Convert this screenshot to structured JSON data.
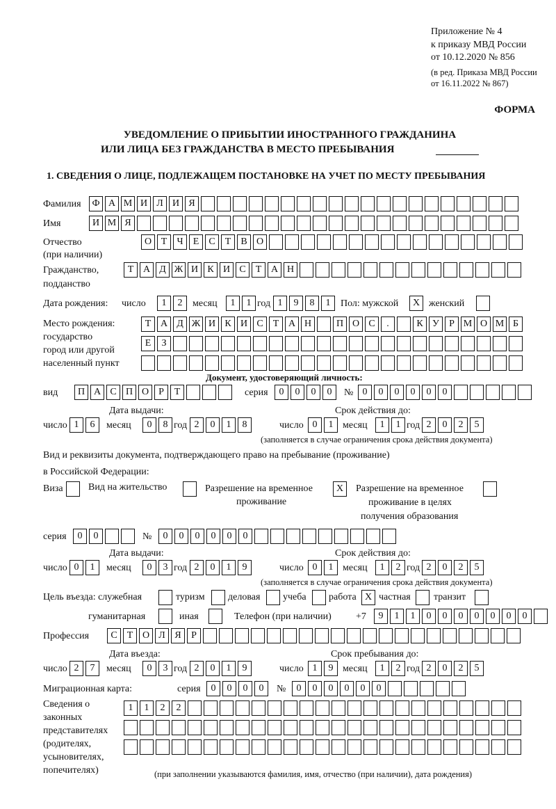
{
  "header": {
    "appendix": [
      "Приложение № 4",
      "к приказу МВД России",
      "от 10.12.2020 № 856"
    ],
    "amendment": [
      "(в ред. Приказа МВД России",
      "от 16.11.2022 № 867)"
    ],
    "form_label": "ФОРМА",
    "title_line1": "УВЕДОМЛЕНИЕ О ПРИБЫТИИ ИНОСТРАННОГО ГРАЖДАНИНА",
    "title_line2": "ИЛИ ЛИЦА БЕЗ ГРАЖДАНСТВА В МЕСТО ПРЕБЫВАНИЯ",
    "section1": "1. СВЕДЕНИЯ О ЛИЦЕ, ПОДЛЕЖАЩЕМ ПОСТАНОВКЕ НА УЧЕТ ПО МЕСТУ ПРЕБЫВАНИЯ"
  },
  "labels": {
    "surname": "Фамилия",
    "name": "Имя",
    "patronymic": "Отчество",
    "patronymic_note": "(при наличии)",
    "citizenship": "Гражданство,",
    "citizenship2": "подданство",
    "birth_date": "Дата рождения:",
    "day": "число",
    "month": "месяц",
    "year": "год",
    "sex": "Пол: мужской",
    "female": "женский",
    "birth_place": [
      "Место рождения:",
      "государство",
      "город или другой",
      "населенный пункт"
    ],
    "id_doc": "Документ, удостоверяющий личность:",
    "kind": "вид",
    "series": "серия",
    "number": "№",
    "issue_date": "Дата выдачи:",
    "valid_until": "Срок действия до:",
    "validity_note": "(заполняется в случае ограничения срока действия документа)",
    "stay_doc1": "Вид и реквизиты документа, подтверждающего право на пребывание (проживание)",
    "stay_doc2": "в Российской Федерации:",
    "visa": "Виза",
    "residence": "Вид на жительство",
    "temp_res": [
      "Разрешение на временное",
      "проживание"
    ],
    "temp_res_edu": [
      "Разрешение на временное",
      "проживание в целях",
      "получения образования"
    ],
    "purpose": "Цель въезда: служебная",
    "tourism": "туризм",
    "business": "деловая",
    "study": "учеба",
    "work": "работа",
    "private": "частная",
    "transit": "транзит",
    "humanitarian": "гуманитарная",
    "other": "иная",
    "phone": "Телефон (при наличии)",
    "phone_prefix": "+7",
    "profession": "Профессия",
    "entry_date": "Дата въезда:",
    "stay_until": "Срок пребывания до:",
    "migration_card": "Миграционная карта:",
    "representatives": [
      "Сведения о",
      "законных",
      "представителях",
      "(родителях,",
      "усыновителях,",
      "попечителях)"
    ],
    "representatives_note": "(при заполнении указываются фамилия, имя, отчество (при наличии), дата рождения)"
  },
  "values": {
    "surname": "ФАМИЛИЯ",
    "name": "ИМЯ",
    "patronymic": "ОТЧЕСТВО",
    "citizenship": "ТАДЖИКИСТАН",
    "birth_day": "12",
    "birth_month": "11",
    "birth_year": "1981",
    "male": "X",
    "female": "",
    "birth_place": [
      "ТАДЖИКИСТАН ПОС. КУРМОМБ",
      "ЕЗ",
      ""
    ],
    "id_kind": "ПАСПОРТ",
    "id_series": "0000",
    "id_number": "000000",
    "id_issue": {
      "day": "16",
      "month": "08",
      "year": "2018"
    },
    "id_valid": {
      "day": "01",
      "month": "11",
      "year": "2025"
    },
    "visa": "",
    "residence": "",
    "temp_res": "X",
    "temp_res_edu": "",
    "stay_series": "00",
    "stay_number": "000000",
    "stay_issue": {
      "day": "01",
      "month": "03",
      "year": "2019"
    },
    "stay_valid": {
      "day": "01",
      "month": "12",
      "year": "2025"
    },
    "purpose": {
      "official": "",
      "tourism": "",
      "business": "",
      "study": "",
      "work": "X",
      "private": "",
      "transit": "",
      "humanitarian": "",
      "other": ""
    },
    "phone": "9110000000",
    "profession": "СТОЛЯР",
    "entry": {
      "day": "27",
      "month": "03",
      "year": "2019"
    },
    "stay_until": {
      "day": "19",
      "month": "12",
      "year": "2025"
    },
    "mc_series": "0000",
    "mc_number": "000000",
    "representatives": [
      "1122",
      "",
      ""
    ]
  }
}
